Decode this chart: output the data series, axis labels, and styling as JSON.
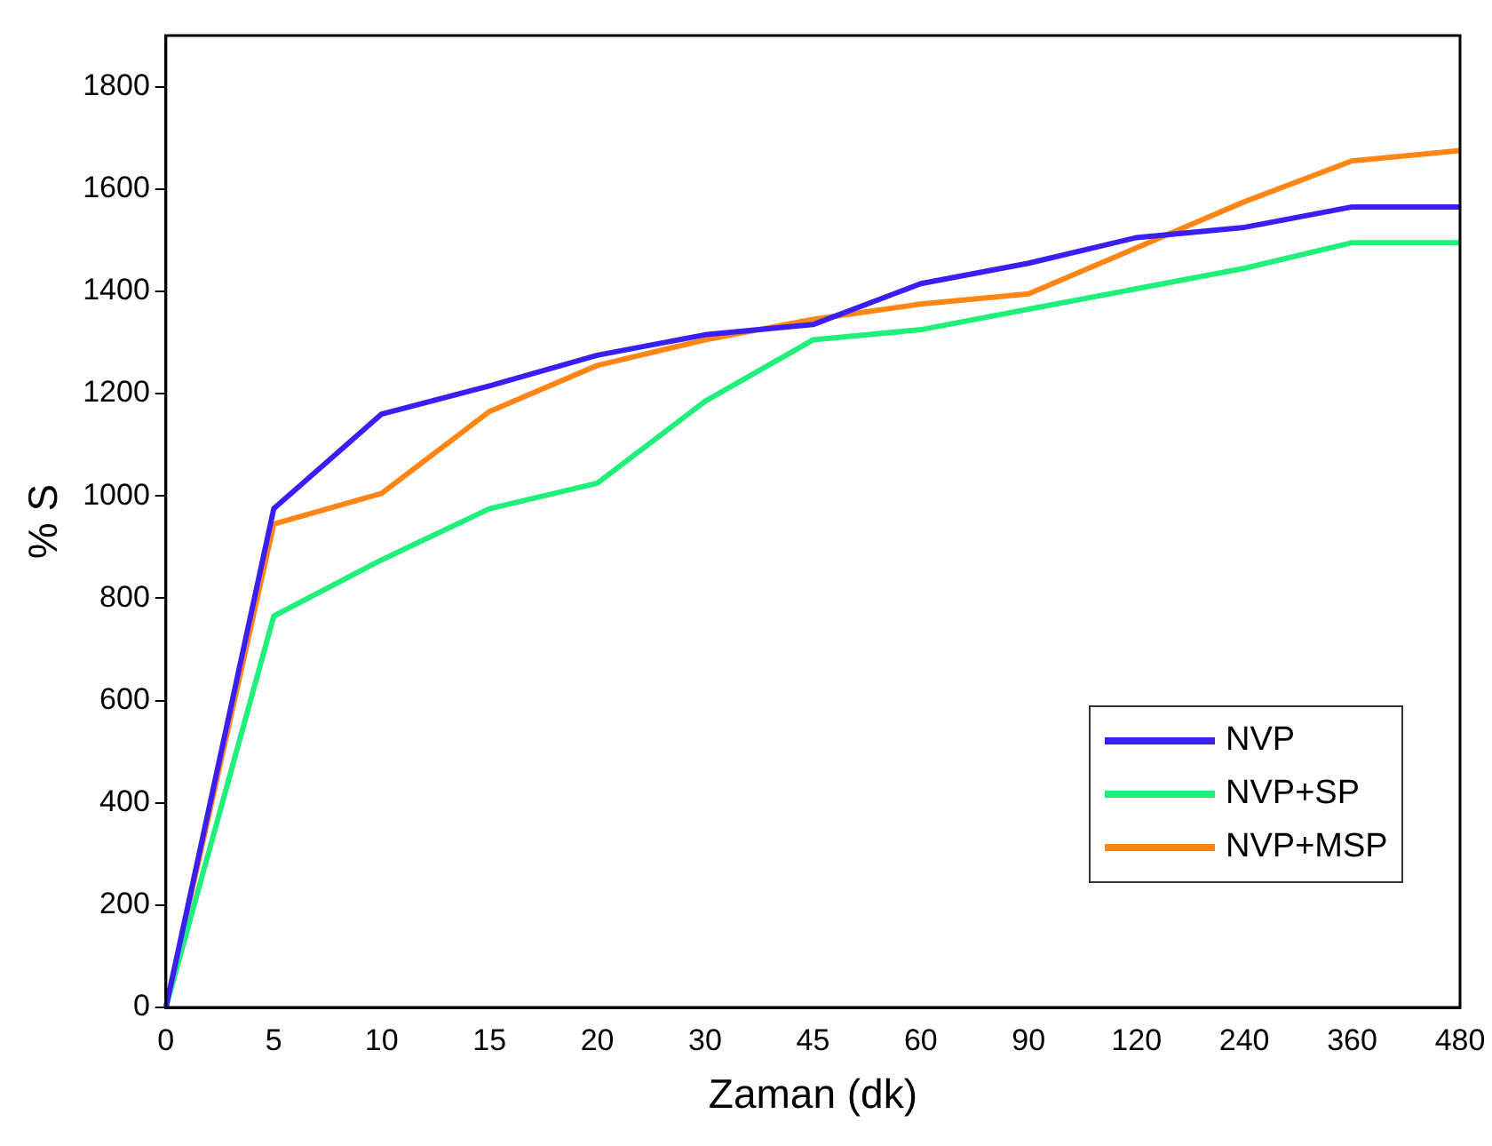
{
  "chart_data": {
    "type": "line",
    "xlabel": "Zaman (dk)",
    "ylabel": "% S",
    "categories": [
      "0",
      "5",
      "10",
      "15",
      "20",
      "30",
      "45",
      "60",
      "90",
      "120",
      "240",
      "360",
      "480"
    ],
    "ylim": [
      0,
      1900
    ],
    "yticks": [
      0,
      200,
      400,
      600,
      800,
      1000,
      1200,
      1400,
      1600,
      1800
    ],
    "grid": false,
    "legend": "bottom right",
    "marker": "none",
    "line_style": "solid",
    "series": [
      {
        "name": "NVP",
        "color": "#3a1ff5",
        "values": [
          0,
          975,
          1160,
          1215,
          1275,
          1315,
          1335,
          1415,
          1455,
          1505,
          1525,
          1565,
          1565
        ]
      },
      {
        "name": "NVP+SP",
        "color": "#1ef07a",
        "values": [
          0,
          765,
          875,
          975,
          1025,
          1185,
          1305,
          1325,
          1365,
          1405,
          1445,
          1495,
          1495
        ]
      },
      {
        "name": "NVP+MSP",
        "color": "#ff8514",
        "values": [
          0,
          945,
          1005,
          1165,
          1255,
          1305,
          1345,
          1375,
          1395,
          1485,
          1575,
          1655,
          1675
        ]
      }
    ]
  }
}
